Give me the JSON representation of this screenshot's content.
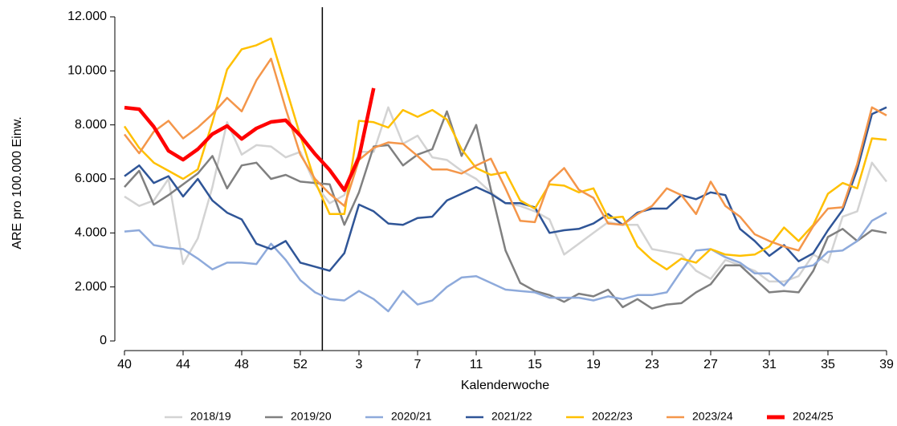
{
  "chart_data": {
    "type": "line",
    "x_label": "Kalenderwoche",
    "y_label": "ARE pro 100.000 Einw.",
    "categories": [
      "40",
      null,
      null,
      null,
      "44",
      null,
      null,
      null,
      "48",
      null,
      null,
      null,
      "52",
      null,
      null,
      null,
      "3",
      null,
      null,
      null,
      "7",
      null,
      null,
      null,
      "11",
      null,
      null,
      null,
      "15",
      null,
      null,
      null,
      "19",
      null,
      null,
      null,
      "23",
      null,
      null,
      null,
      "27",
      null,
      null,
      null,
      "31",
      null,
      null,
      null,
      "35",
      null,
      null,
      null,
      "39"
    ],
    "ylim": [
      0,
      12000
    ],
    "yticks": [
      {
        "value": 0,
        "label": "0"
      },
      {
        "value": 2000,
        "label": "2.000"
      },
      {
        "value": 4000,
        "label": "4.000"
      },
      {
        "value": 6000,
        "label": "6.000"
      },
      {
        "value": 8000,
        "label": "8.000"
      },
      {
        "value": 10000,
        "label": "10.000"
      },
      {
        "value": 12000,
        "label": "12.000"
      }
    ],
    "series": [
      {
        "name": "2018/19",
        "color": "#d3d3d3",
        "values": [
          5350,
          5000,
          5200,
          6000,
          2850,
          3800,
          5700,
          8100,
          6900,
          7250,
          7200,
          6800,
          7000,
          5800,
          5100,
          5400,
          7000,
          7000,
          8650,
          7300,
          7600,
          6800,
          6700,
          6300,
          6000,
          5500,
          5100,
          5000,
          4800,
          4500,
          3200,
          3600,
          4000,
          4400,
          4300,
          4300,
          3400,
          3300,
          3200,
          2600,
          2300,
          3000,
          2800,
          2600,
          2200,
          2200,
          2400,
          3200,
          2900,
          4600,
          4800,
          6600,
          5900
        ]
      },
      {
        "name": "2019/20",
        "color": "#808080",
        "values": [
          5700,
          6300,
          5050,
          5400,
          5800,
          6200,
          6850,
          5650,
          6500,
          6600,
          6000,
          6150,
          5900,
          5850,
          5800,
          4300,
          5500,
          7200,
          7250,
          6500,
          6900,
          7100,
          8500,
          6850,
          8000,
          5600,
          3350,
          2150,
          1850,
          1700,
          1450,
          1750,
          1650,
          1900,
          1250,
          1550,
          1200,
          1350,
          1400,
          1800,
          2100,
          2800,
          2800,
          2300,
          1800,
          1850,
          1800,
          2600,
          3850,
          4150,
          3700,
          4100,
          4000
        ]
      },
      {
        "name": "2020/21",
        "color": "#8eaadb",
        "values": [
          4050,
          4100,
          3550,
          3450,
          3400,
          3050,
          2650,
          2900,
          2900,
          2850,
          3600,
          3000,
          2250,
          1800,
          1550,
          1500,
          1850,
          1550,
          1100,
          1850,
          1350,
          1500,
          2000,
          2350,
          2400,
          2150,
          1900,
          1850,
          1800,
          1600,
          1600,
          1600,
          1500,
          1650,
          1550,
          1700,
          1700,
          1800,
          2600,
          3350,
          3400,
          3100,
          2900,
          2500,
          2500,
          2050,
          2700,
          2800,
          3300,
          3350,
          3700,
          4450,
          4750
        ]
      },
      {
        "name": "2021/22",
        "color": "#2f5597",
        "values": [
          6100,
          6500,
          5850,
          6100,
          5350,
          6000,
          5200,
          4750,
          4500,
          3600,
          3400,
          3700,
          2900,
          2750,
          2600,
          3250,
          5050,
          4800,
          4350,
          4300,
          4550,
          4600,
          5200,
          5450,
          5700,
          5450,
          5100,
          5100,
          4950,
          4000,
          4100,
          4150,
          4350,
          4700,
          4300,
          4750,
          4900,
          4900,
          5400,
          5250,
          5500,
          5400,
          4150,
          3700,
          3150,
          3550,
          2950,
          3250,
          4100,
          4850,
          6350,
          8400,
          8650
        ]
      },
      {
        "name": "2022/23",
        "color": "#ffc000",
        "values": [
          7950,
          7150,
          6600,
          6300,
          6000,
          6350,
          8100,
          10050,
          10800,
          10950,
          11200,
          9400,
          7600,
          5900,
          4700,
          4700,
          8150,
          8100,
          7900,
          8550,
          8300,
          8550,
          8200,
          7100,
          6400,
          6150,
          6250,
          5200,
          4900,
          5800,
          5750,
          5500,
          5650,
          4550,
          4600,
          3500,
          3000,
          2650,
          3050,
          2900,
          3400,
          3200,
          3150,
          3200,
          3500,
          4200,
          3700,
          4300,
          5450,
          5850,
          5650,
          7500,
          7450
        ]
      },
      {
        "name": "2023/24",
        "color": "#f4964a",
        "values": [
          7650,
          6950,
          7750,
          8150,
          7500,
          7900,
          8400,
          9000,
          8500,
          9650,
          10450,
          8600,
          6900,
          6000,
          5450,
          5000,
          6700,
          7150,
          7350,
          7300,
          6850,
          6350,
          6350,
          6200,
          6500,
          6750,
          5650,
          4450,
          4400,
          5900,
          6400,
          5600,
          5300,
          4350,
          4300,
          4700,
          5000,
          5650,
          5400,
          4700,
          5900,
          5000,
          4600,
          3950,
          3700,
          3500,
          3350,
          4250,
          4900,
          4950,
          6550,
          8650,
          8350
        ]
      },
      {
        "name": "2024/25",
        "color": "#ff0000",
        "values": [
          8640,
          8580,
          7930,
          7040,
          6710,
          7100,
          7660,
          7960,
          7480,
          7870,
          8110,
          8170,
          7600,
          6920,
          6330,
          5580,
          6800,
          9360,
          null,
          null,
          null,
          null,
          null,
          null,
          null,
          null,
          null,
          null,
          null,
          null,
          null,
          null,
          null,
          null,
          null,
          null,
          null,
          null,
          null,
          null,
          null,
          null,
          null,
          null,
          null,
          null,
          null,
          null,
          null,
          null,
          null,
          null,
          null
        ]
      }
    ]
  }
}
